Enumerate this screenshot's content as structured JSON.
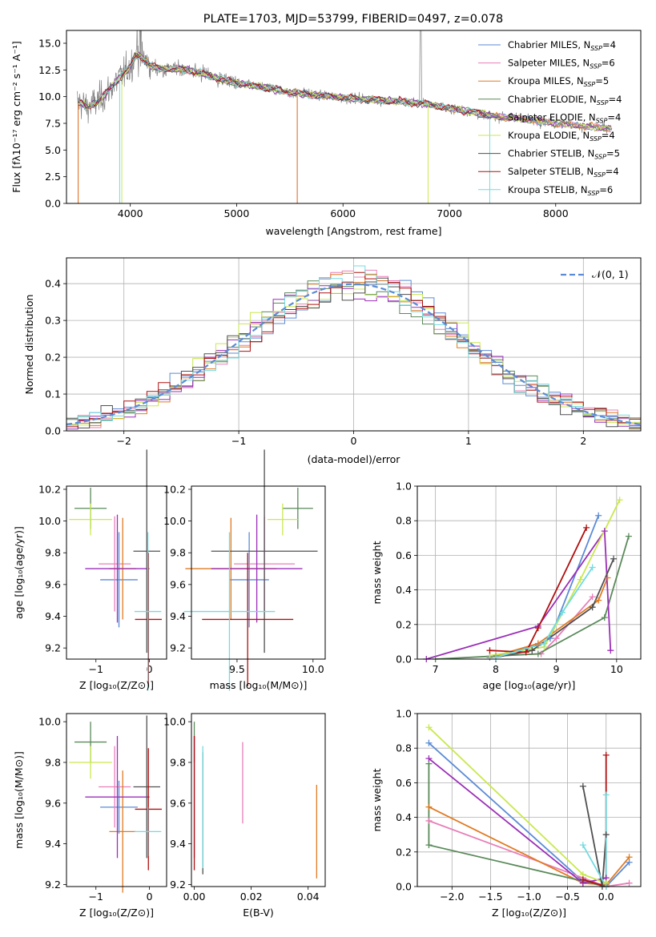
{
  "colors": {
    "chabrier_miles": "#5b8bd6",
    "salpeter_miles": "#e87fb8",
    "kroupa_miles": "#e07b22",
    "chabrier_elodie": "#5a8a5a",
    "salpeter_elodie": "#9b2fb8",
    "kroupa_elodie": "#c9e84e",
    "chabrier_stelib": "#505050",
    "salpeter_stelib": "#b01010",
    "kroupa_stelib": "#74dbe0",
    "data_spectrum": "#808080",
    "normal_curve": "#5b8bd6",
    "grid": "#b0b0b0"
  },
  "chart_data": [
    {
      "id": "spectrum",
      "type": "line",
      "title": "PLATE=1703, MJD=53799, FIBERID=0497, z=0.078",
      "xlabel": "wavelength [Angstrom, rest frame]",
      "ylabel": "Flux [fλ10⁻¹⁷ erg cm⁻² s⁻¹ A⁻¹]",
      "xlim": [
        3400,
        8800
      ],
      "ylim": [
        0,
        16.2
      ],
      "xticks": [
        4000,
        5000,
        6000,
        7000,
        8000
      ],
      "yticks": [
        "0.0",
        "2.5",
        "5.0",
        "7.5",
        "10.0",
        "12.5",
        "15.0"
      ],
      "legend_position": "top-right",
      "legend": [
        {
          "key": "chabrier_miles",
          "label": "Chabrier MILES, N",
          "sub": "SSP",
          "tail": "=4"
        },
        {
          "key": "salpeter_miles",
          "label": "Salpeter MILES, N",
          "sub": "SSP",
          "tail": "=6"
        },
        {
          "key": "kroupa_miles",
          "label": "Kroupa MILES, N",
          "sub": "SSP",
          "tail": "=5"
        },
        {
          "key": "chabrier_elodie",
          "label": "Chabrier ELODIE, N",
          "sub": "SSP",
          "tail": "=4"
        },
        {
          "key": "salpeter_elodie",
          "label": "Salpeter ELODIE, N",
          "sub": "SSP",
          "tail": "=4"
        },
        {
          "key": "kroupa_elodie",
          "label": "Kroupa ELODIE, N",
          "sub": "SSP",
          "tail": "=4"
        },
        {
          "key": "chabrier_stelib",
          "label": "Chabrier STELIB, N",
          "sub": "SSP",
          "tail": "=5"
        },
        {
          "key": "salpeter_stelib",
          "label": "Salpeter STELIB, N",
          "sub": "SSP",
          "tail": "=4"
        },
        {
          "key": "kroupa_stelib",
          "label": "Kroupa STELIB, N",
          "sub": "SSP",
          "tail": "=6"
        }
      ],
      "continuum": [
        [
          3520,
          9.5
        ],
        [
          3600,
          9.0
        ],
        [
          3700,
          9.6
        ],
        [
          3800,
          10.6
        ],
        [
          3900,
          11.8
        ],
        [
          4000,
          12.8
        ],
        [
          4050,
          13.9
        ],
        [
          4100,
          13.8
        ],
        [
          4200,
          12.8
        ],
        [
          4300,
          12.6
        ],
        [
          4500,
          12.6
        ],
        [
          4700,
          12.1
        ],
        [
          4900,
          11.5
        ],
        [
          5100,
          11.1
        ],
        [
          5300,
          10.8
        ],
        [
          5500,
          10.4
        ],
        [
          5800,
          10.1
        ],
        [
          6000,
          9.9
        ],
        [
          6300,
          9.7
        ],
        [
          6600,
          9.5
        ],
        [
          6800,
          9.3
        ],
        [
          7000,
          8.9
        ],
        [
          7200,
          8.6
        ],
        [
          7400,
          8.2
        ],
        [
          7600,
          8.0
        ],
        [
          7800,
          7.8
        ],
        [
          8000,
          7.5
        ],
        [
          8200,
          7.3
        ],
        [
          8400,
          7.1
        ],
        [
          8530,
          7.0
        ]
      ],
      "data_range": [
        3500,
        8530
      ]
    },
    {
      "id": "residuals",
      "type": "histogram",
      "xlabel": "(data-model)/error",
      "ylabel": "Normed distribution",
      "xlim": [
        -2.5,
        2.5
      ],
      "ylim": [
        0,
        0.47
      ],
      "xticks": [
        -2,
        -1,
        0,
        1,
        2
      ],
      "xtick_labels": [
        "−2",
        "−1",
        "0",
        "1",
        "2"
      ],
      "yticks": [
        "0.0",
        "0.1",
        "0.2",
        "0.3",
        "0.4"
      ],
      "legend_position": "top-right",
      "legend_label": "𝒩(0, 1)",
      "bin_width": 0.1,
      "grid": true
    },
    {
      "id": "age_vs_Z",
      "type": "errorbar",
      "xlabel": "Z [log₁₀(Z/Z⊙)]",
      "ylabel": "age  [log₁₀(age/yr)]",
      "xlim": [
        -1.55,
        0.32
      ],
      "ylim": [
        9.13,
        10.22
      ],
      "xticks": [
        -1,
        0
      ],
      "xtick_labels": [
        "−1",
        "0"
      ],
      "yticks": [
        9.2,
        9.4,
        9.6,
        9.8,
        10.0,
        10.2
      ],
      "ytick_labels": [
        "9.2",
        "9.4",
        "9.6",
        "9.8",
        "10.0",
        "10.2"
      ],
      "points": [
        {
          "key": "chabrier_elodie",
          "x": -1.1,
          "xerr": 0.3,
          "y": 10.08,
          "yerr": 0.13
        },
        {
          "key": "kroupa_elodie",
          "x": -1.1,
          "xerr": 0.4,
          "y": 10.01,
          "yerr": 0.1
        },
        {
          "key": "chabrier_miles",
          "x": -0.57,
          "xerr": 0.35,
          "y": 9.63,
          "yerr": 0.3
        },
        {
          "key": "salpeter_miles",
          "x": -0.65,
          "xerr": 0.3,
          "y": 9.73,
          "yerr": 0.3
        },
        {
          "key": "kroupa_miles",
          "x": -0.5,
          "xerr": 0.25,
          "y": 9.7,
          "yerr": 0.32
        },
        {
          "key": "salpeter_elodie",
          "x": -0.6,
          "xerr": 0.6,
          "y": 9.7,
          "yerr": 0.34
        },
        {
          "key": "chabrier_stelib",
          "x": -0.05,
          "xerr": 0.25,
          "y": 9.81,
          "yerr": 0.64
        },
        {
          "key": "salpeter_stelib",
          "x": -0.02,
          "xerr": 0.25,
          "y": 9.38,
          "yerr": 0.42
        },
        {
          "key": "kroupa_stelib",
          "x": -0.03,
          "xerr": 0.25,
          "y": 9.43,
          "yerr": 0.5
        }
      ]
    },
    {
      "id": "age_vs_mass",
      "type": "errorbar",
      "xlabel": "mass [log₁₀(M/M⊙)]",
      "ylabel": "",
      "xlim": [
        9.2,
        10.08
      ],
      "ylim": [
        9.13,
        10.22
      ],
      "xticks": [
        9.5,
        10.0
      ],
      "xtick_labels": [
        "9.5",
        "10.0"
      ],
      "yticks": [
        9.2,
        9.4,
        9.6,
        9.8,
        10.0,
        10.2
      ],
      "ytick_labels": [
        "9.2",
        "9.4",
        "9.6",
        "9.8",
        "10.0",
        "10.2"
      ],
      "points": [
        {
          "key": "chabrier_elodie",
          "x": 9.9,
          "xerr": 0.1,
          "y": 10.08,
          "yerr": 0.13
        },
        {
          "key": "kroupa_elodie",
          "x": 9.8,
          "xerr": 0.1,
          "y": 10.01,
          "yerr": 0.1
        },
        {
          "key": "chabrier_miles",
          "x": 9.58,
          "xerr": 0.13,
          "y": 9.63,
          "yerr": 0.3
        },
        {
          "key": "salpeter_miles",
          "x": 9.68,
          "xerr": 0.2,
          "y": 9.73,
          "yerr": 0.3
        },
        {
          "key": "kroupa_miles",
          "x": 9.46,
          "xerr": 0.3,
          "y": 9.7,
          "yerr": 0.32
        },
        {
          "key": "salpeter_elodie",
          "x": 9.63,
          "xerr": 0.3,
          "y": 9.7,
          "yerr": 0.34
        },
        {
          "key": "chabrier_stelib",
          "x": 9.68,
          "xerr": 0.35,
          "y": 9.81,
          "yerr": 0.64
        },
        {
          "key": "salpeter_stelib",
          "x": 9.57,
          "xerr": 0.3,
          "y": 9.38,
          "yerr": 0.42
        },
        {
          "key": "kroupa_stelib",
          "x": 9.45,
          "xerr": 0.3,
          "y": 9.43,
          "yerr": 0.5
        }
      ]
    },
    {
      "id": "weight_vs_age",
      "type": "line",
      "xlabel": "age  [log₁₀(age/yr)]",
      "ylabel": "mass weight",
      "xlim": [
        6.7,
        10.4
      ],
      "ylim": [
        0,
        1.0
      ],
      "xticks": [
        7,
        8,
        9,
        10
      ],
      "xtick_labels": [
        "7",
        "8",
        "9",
        "10"
      ],
      "yticks": [
        0,
        0.2,
        0.4,
        0.6,
        0.8,
        1.0
      ],
      "ytick_labels": [
        "0.0",
        "0.2",
        "0.4",
        "0.6",
        "0.8",
        "1.0"
      ],
      "grid": true,
      "series": [
        {
          "key": "chabrier_miles",
          "points": [
            [
              7.9,
              0.01
            ],
            [
              8.7,
              0.08
            ],
            [
              8.9,
              0.12
            ],
            [
              9.7,
              0.83
            ]
          ]
        },
        {
          "key": "salpeter_miles",
          "points": [
            [
              7.9,
              0.02
            ],
            [
              8.75,
              0.03
            ],
            [
              9.0,
              0.12
            ],
            [
              9.6,
              0.36
            ]
          ]
        },
        {
          "key": "kroupa_miles",
          "points": [
            [
              8.0,
              0.02
            ],
            [
              8.7,
              0.09
            ],
            [
              9.7,
              0.34
            ],
            [
              9.85,
              0.47
            ]
          ]
        },
        {
          "key": "chabrier_elodie",
          "points": [
            [
              7.0,
              0.0
            ],
            [
              8.7,
              0.03
            ],
            [
              9.8,
              0.24
            ],
            [
              10.2,
              0.71
            ]
          ]
        },
        {
          "key": "salpeter_elodie",
          "points": [
            [
              6.85,
              0.0
            ],
            [
              8.7,
              0.19
            ],
            [
              9.8,
              0.74
            ],
            [
              9.9,
              0.05
            ]
          ]
        },
        {
          "key": "kroupa_elodie",
          "points": [
            [
              7.9,
              0.02
            ],
            [
              8.8,
              0.07
            ],
            [
              9.4,
              0.46
            ],
            [
              10.05,
              0.92
            ]
          ]
        },
        {
          "key": "chabrier_stelib",
          "points": [
            [
              8.0,
              0.01
            ],
            [
              8.6,
              0.05
            ],
            [
              9.6,
              0.3
            ],
            [
              9.95,
              0.58
            ]
          ]
        },
        {
          "key": "salpeter_stelib",
          "points": [
            [
              7.9,
              0.05
            ],
            [
              8.5,
              0.04
            ],
            [
              8.7,
              0.18
            ],
            [
              9.5,
              0.76
            ]
          ]
        },
        {
          "key": "kroupa_stelib",
          "points": [
            [
              8.0,
              0.01
            ],
            [
              8.8,
              0.09
            ],
            [
              9.1,
              0.27
            ],
            [
              9.6,
              0.53
            ]
          ]
        }
      ]
    },
    {
      "id": "mass_vs_Z",
      "type": "errorbar",
      "xlabel": "Z [log₁₀(Z/Z⊙)]",
      "ylabel": "mass [log₁₀(M/M⊙)]",
      "xlim": [
        -1.55,
        0.32
      ],
      "ylim": [
        9.19,
        10.04
      ],
      "xticks": [
        -1,
        0
      ],
      "xtick_labels": [
        "−1",
        "0"
      ],
      "yticks": [
        9.2,
        9.4,
        9.6,
        9.8,
        10.0
      ],
      "ytick_labels": [
        "9.2",
        "9.4",
        "9.6",
        "9.8",
        "10.0"
      ],
      "points": [
        {
          "key": "chabrier_elodie",
          "x": -1.1,
          "xerr": 0.3,
          "y": 9.9,
          "yerr": 0.1
        },
        {
          "key": "kroupa_elodie",
          "x": -1.1,
          "xerr": 0.4,
          "y": 9.8,
          "yerr": 0.08
        },
        {
          "key": "chabrier_miles",
          "x": -0.57,
          "xerr": 0.35,
          "y": 9.58,
          "yerr": 0.13
        },
        {
          "key": "salpeter_miles",
          "x": -0.65,
          "xerr": 0.3,
          "y": 9.68,
          "yerr": 0.2
        },
        {
          "key": "kroupa_miles",
          "x": -0.5,
          "xerr": 0.25,
          "y": 9.46,
          "yerr": 0.3
        },
        {
          "key": "salpeter_elodie",
          "x": -0.6,
          "xerr": 0.6,
          "y": 9.63,
          "yerr": 0.3
        },
        {
          "key": "chabrier_stelib",
          "x": -0.05,
          "xerr": 0.25,
          "y": 9.68,
          "yerr": 0.35
        },
        {
          "key": "salpeter_stelib",
          "x": -0.02,
          "xerr": 0.25,
          "y": 9.57,
          "yerr": 0.3
        },
        {
          "key": "kroupa_stelib",
          "x": -0.03,
          "xerr": 0.25,
          "y": 9.46,
          "yerr": 0.12
        }
      ]
    },
    {
      "id": "mass_vs_ebv",
      "type": "errorbar",
      "xlabel": "E(B-V)",
      "ylabel": "",
      "xlim": [
        -0.001,
        0.046
      ],
      "ylim": [
        9.19,
        10.04
      ],
      "xticks": [
        0.0,
        0.02,
        0.04
      ],
      "xtick_labels": [
        "0.00",
        "0.02",
        "0.04"
      ],
      "yticks": [
        9.2,
        9.4,
        9.6,
        9.8,
        10.0
      ],
      "ytick_labels": [
        "9.2",
        "9.4",
        "9.6",
        "9.8",
        "10.0"
      ],
      "points": [
        {
          "key": "chabrier_elodie",
          "x": 0.0,
          "xerr": 0,
          "y": 9.9,
          "yerr": 0.1
        },
        {
          "key": "salpeter_elodie",
          "x": 0.0,
          "xerr": 0,
          "y": 9.63,
          "yerr": 0.3
        },
        {
          "key": "salpeter_stelib",
          "x": 0.0,
          "xerr": 0,
          "y": 9.6,
          "yerr": 0.33
        },
        {
          "key": "chabrier_stelib",
          "x": 0.003,
          "xerr": 0,
          "y": 9.55,
          "yerr": 0.3
        },
        {
          "key": "kroupa_stelib",
          "x": 0.003,
          "xerr": 0,
          "y": 9.58,
          "yerr": 0.3
        },
        {
          "key": "salpeter_miles",
          "x": 0.017,
          "xerr": 0,
          "y": 9.7,
          "yerr": 0.2
        },
        {
          "key": "kroupa_miles",
          "x": 0.043,
          "xerr": 0,
          "y": 9.46,
          "yerr": 0.23
        }
      ]
    },
    {
      "id": "weight_vs_Z",
      "type": "line",
      "xlabel": "Z [log₁₀(Z/Z⊙)]",
      "ylabel": "mass weight",
      "xlim": [
        -2.45,
        0.45
      ],
      "ylim": [
        0,
        1.0
      ],
      "xticks": [
        -2.0,
        -1.5,
        -1.0,
        -0.5,
        0.0
      ],
      "xtick_labels": [
        "−2.0",
        "−1.5",
        "−1.0",
        "−0.5",
        "0.0"
      ],
      "yticks": [
        0,
        0.2,
        0.4,
        0.6,
        0.8,
        1.0
      ],
      "ytick_labels": [
        "0.0",
        "0.2",
        "0.4",
        "0.6",
        "0.8",
        "1.0"
      ],
      "grid": true,
      "series": [
        {
          "key": "chabrier_miles",
          "points": [
            [
              -2.3,
              0.83
            ],
            [
              -0.3,
              0.03
            ],
            [
              0.0,
              0.0
            ],
            [
              0.3,
              0.14
            ]
          ]
        },
        {
          "key": "salpeter_miles",
          "points": [
            [
              -2.3,
              0.38
            ],
            [
              -0.3,
              0.05
            ],
            [
              0.0,
              0.0
            ],
            [
              0.3,
              0.02
            ]
          ]
        },
        {
          "key": "kroupa_miles",
          "points": [
            [
              -2.3,
              0.46
            ],
            [
              -0.3,
              0.02
            ],
            [
              0.0,
              0.01
            ],
            [
              0.3,
              0.17
            ]
          ]
        },
        {
          "key": "chabrier_elodie",
          "points": [
            [
              -2.3,
              0.71
            ],
            [
              -2.3,
              0.24
            ],
            [
              0.0,
              0.0
            ]
          ]
        },
        {
          "key": "salpeter_elodie",
          "points": [
            [
              -2.3,
              0.74
            ],
            [
              -0.3,
              0.02
            ],
            [
              0.0,
              0.05
            ]
          ]
        },
        {
          "key": "kroupa_elodie",
          "points": [
            [
              -2.3,
              0.92
            ],
            [
              -0.3,
              0.07
            ],
            [
              0.0,
              0.02
            ]
          ]
        },
        {
          "key": "chabrier_stelib",
          "points": [
            [
              -0.3,
              0.58
            ],
            [
              -0.05,
              0.0
            ],
            [
              0.0,
              0.3
            ]
          ]
        },
        {
          "key": "salpeter_stelib",
          "points": [
            [
              -0.3,
              0.04
            ],
            [
              0.0,
              0.0
            ],
            [
              0.0,
              0.76
            ]
          ]
        },
        {
          "key": "kroupa_stelib",
          "points": [
            [
              -0.3,
              0.24
            ],
            [
              0.0,
              0.0
            ],
            [
              0.0,
              0.53
            ]
          ]
        }
      ]
    }
  ]
}
